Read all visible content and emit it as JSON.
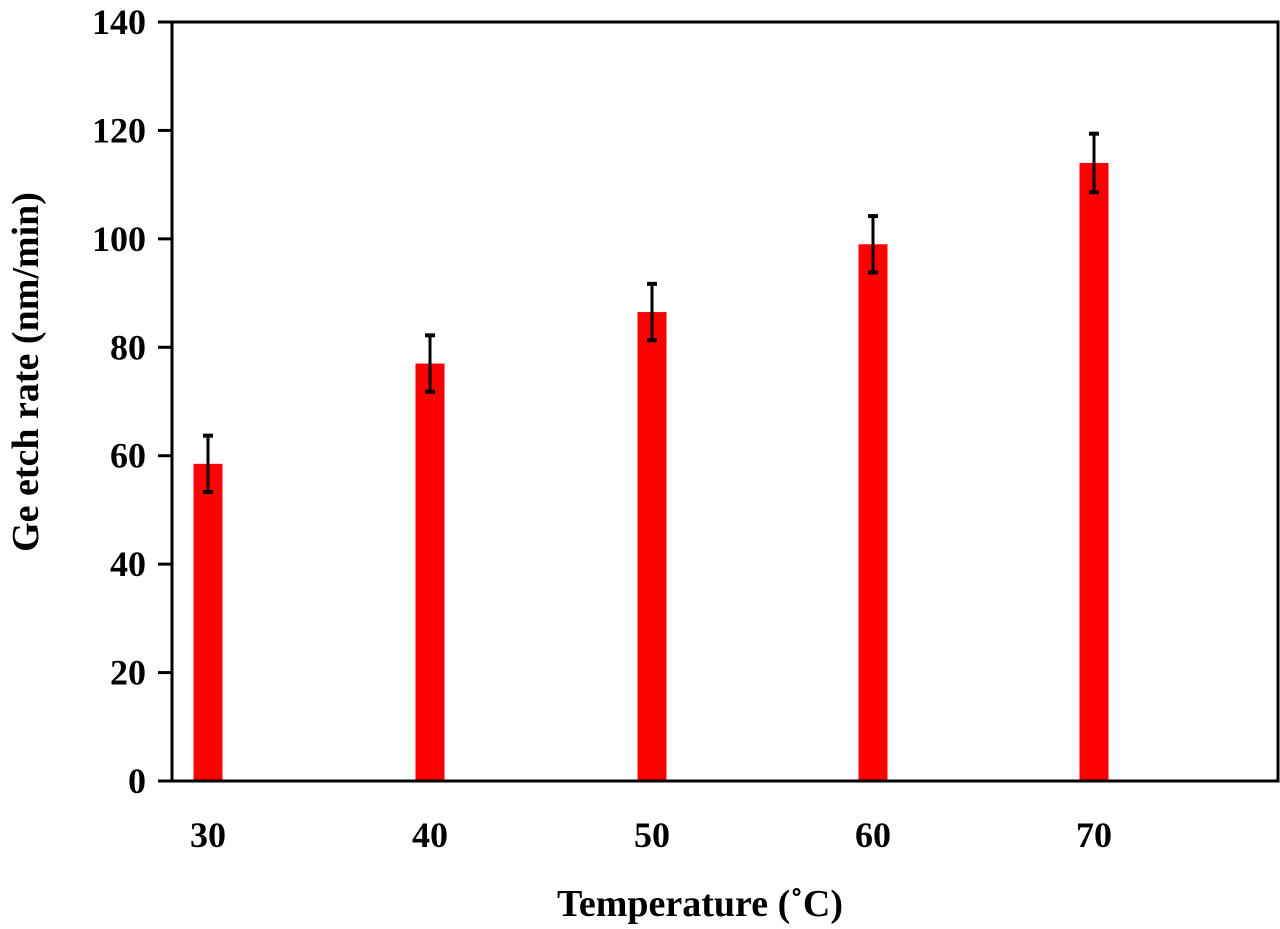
{
  "chart_data": {
    "type": "bar",
    "categories": [
      "30",
      "40",
      "50",
      "60",
      "70"
    ],
    "values": [
      58.5,
      77,
      86.5,
      99,
      114
    ],
    "errors": [
      5.2,
      5.2,
      5.2,
      5.2,
      5.4
    ],
    "xlabel": "Temperature (˚C)",
    "ylabel": "Ge etch rate (nm/min)",
    "ylim": [
      0,
      140
    ],
    "yticks": [
      0,
      20,
      40,
      60,
      80,
      100,
      120,
      140
    ],
    "grid": false,
    "legend": "none",
    "bar_color": "#ff0000",
    "error_bar_color": "#000000"
  }
}
